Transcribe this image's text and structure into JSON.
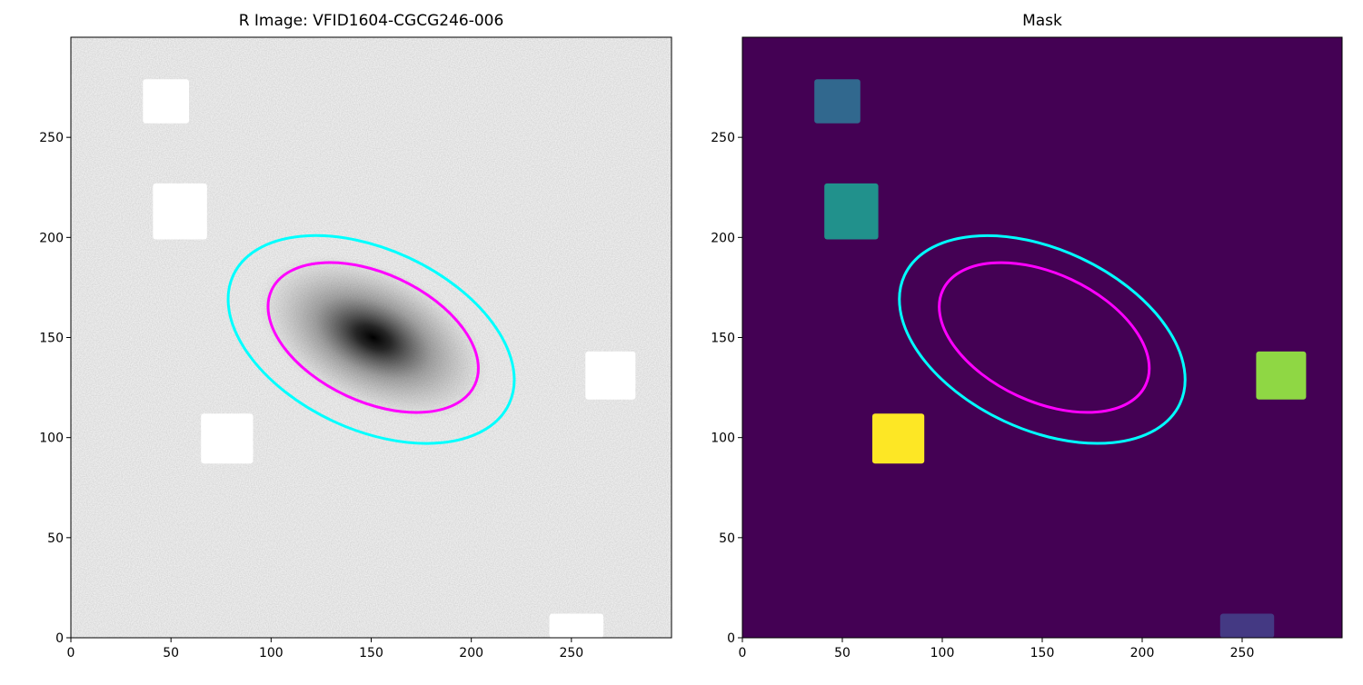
{
  "chart_data": [
    {
      "type": "image",
      "title": "R Image: VFID1604-CGCG246-006",
      "background": "#c9c9c9",
      "noise": true,
      "xlim": [
        0,
        300
      ],
      "ylim": [
        0,
        300
      ],
      "xticks": [
        0,
        50,
        100,
        150,
        200,
        250
      ],
      "yticks": [
        0,
        50,
        100,
        150,
        200,
        250
      ],
      "regions": [
        {
          "color": "#ffffff",
          "x": [
            36,
            59
          ],
          "y": [
            257,
            279
          ]
        },
        {
          "color": "#ffffff",
          "x": [
            41,
            68
          ],
          "y": [
            199,
            227
          ]
        },
        {
          "color": "#ffffff",
          "x": [
            65,
            91
          ],
          "y": [
            87,
            112
          ]
        },
        {
          "color": "#ffffff",
          "x": [
            257,
            282
          ],
          "y": [
            119,
            143
          ]
        },
        {
          "color": "#ffffff",
          "x": [
            239,
            266
          ],
          "y": [
            0,
            12
          ]
        }
      ],
      "ellipses": [
        {
          "color": "#00ffff",
          "x": 150,
          "y": 149,
          "a": 76,
          "b": 45,
          "angle": -25
        },
        {
          "color": "#ff00ff",
          "x": 151,
          "y": 150,
          "a": 56,
          "b": 32,
          "angle": -25
        }
      ]
    },
    {
      "type": "image",
      "title": "Mask",
      "background": "#440154",
      "noise": false,
      "xlim": [
        0,
        300
      ],
      "ylim": [
        0,
        300
      ],
      "xticks": [
        0,
        50,
        100,
        150,
        200,
        250
      ],
      "yticks": [
        0,
        50,
        100,
        150,
        200,
        250
      ],
      "regions": [
        {
          "color": "#31688e",
          "x": [
            36,
            59
          ],
          "y": [
            257,
            279
          ]
        },
        {
          "color": "#21918c",
          "x": [
            41,
            68
          ],
          "y": [
            199,
            227
          ]
        },
        {
          "color": "#fde725",
          "x": [
            65,
            91
          ],
          "y": [
            87,
            112
          ]
        },
        {
          "color": "#8fd744",
          "x": [
            257,
            282
          ],
          "y": [
            119,
            143
          ]
        },
        {
          "color": "#443983",
          "x": [
            239,
            266
          ],
          "y": [
            0,
            12
          ]
        }
      ],
      "ellipses": [
        {
          "color": "#00ffff",
          "x": 150,
          "y": 149,
          "a": 76,
          "b": 45,
          "angle": -25
        },
        {
          "color": "#ff00ff",
          "x": 151,
          "y": 150,
          "a": 56,
          "b": 32,
          "angle": -25
        }
      ]
    }
  ]
}
